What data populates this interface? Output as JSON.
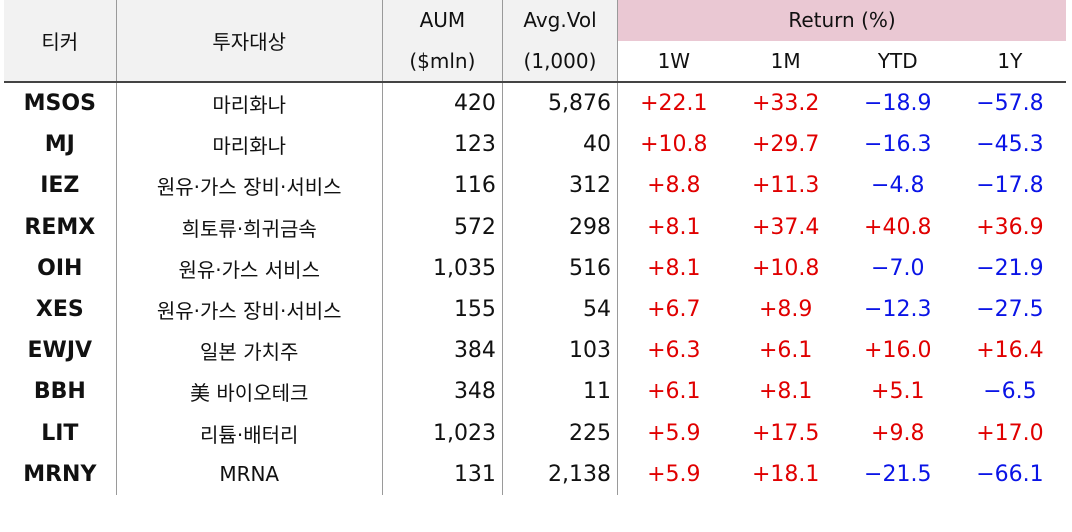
{
  "headers": {
    "ticker": "티커",
    "target": "투자대상",
    "aum": "AUM",
    "aum_unit": "($mln)",
    "vol": "Avg.Vol",
    "vol_unit": "(1,000)",
    "return_group": "Return (%)",
    "r1w": "1W",
    "r1m": "1M",
    "rytd": "YTD",
    "r1y": "1Y"
  },
  "colors": {
    "positive": "#e00000",
    "negative": "#0a14e6",
    "return_header_bg": "#eac8d3",
    "header_bg": "#f2f2f2"
  },
  "rows": [
    {
      "ticker": "MSOS",
      "target": "마리화나",
      "aum": "420",
      "vol": "5,876",
      "w1": "+22.1",
      "m1": "+33.2",
      "ytd": "−18.9",
      "y1": "−57.8"
    },
    {
      "ticker": "MJ",
      "target": "마리화나",
      "aum": "123",
      "vol": "40",
      "w1": "+10.8",
      "m1": "+29.7",
      "ytd": "−16.3",
      "y1": "−45.3"
    },
    {
      "ticker": "IEZ",
      "target": "원유·가스 장비·서비스",
      "aum": "116",
      "vol": "312",
      "w1": "+8.8",
      "m1": "+11.3",
      "ytd": "−4.8",
      "y1": "−17.8"
    },
    {
      "ticker": "REMX",
      "target": "희토류·희귀금속",
      "aum": "572",
      "vol": "298",
      "w1": "+8.1",
      "m1": "+37.4",
      "ytd": "+40.8",
      "y1": "+36.9"
    },
    {
      "ticker": "OIH",
      "target": "원유·가스 서비스",
      "aum": "1,035",
      "vol": "516",
      "w1": "+8.1",
      "m1": "+10.8",
      "ytd": "−7.0",
      "y1": "−21.9"
    },
    {
      "ticker": "XES",
      "target": "원유·가스 장비·서비스",
      "aum": "155",
      "vol": "54",
      "w1": "+6.7",
      "m1": "+8.9",
      "ytd": "−12.3",
      "y1": "−27.5"
    },
    {
      "ticker": "EWJV",
      "target": "일본 가치주",
      "aum": "384",
      "vol": "103",
      "w1": "+6.3",
      "m1": "+6.1",
      "ytd": "+16.0",
      "y1": "+16.4"
    },
    {
      "ticker": "BBH",
      "target": "美 바이오테크",
      "aum": "348",
      "vol": "11",
      "w1": "+6.1",
      "m1": "+8.1",
      "ytd": "+5.1",
      "y1": "−6.5"
    },
    {
      "ticker": "LIT",
      "target": "리튬·배터리",
      "aum": "1,023",
      "vol": "225",
      "w1": "+5.9",
      "m1": "+17.5",
      "ytd": "+9.8",
      "y1": "+17.0"
    },
    {
      "ticker": "MRNY",
      "target": "MRNA",
      "aum": "131",
      "vol": "2,138",
      "w1": "+5.9",
      "m1": "+18.1",
      "ytd": "−21.5",
      "y1": "−66.1"
    }
  ]
}
